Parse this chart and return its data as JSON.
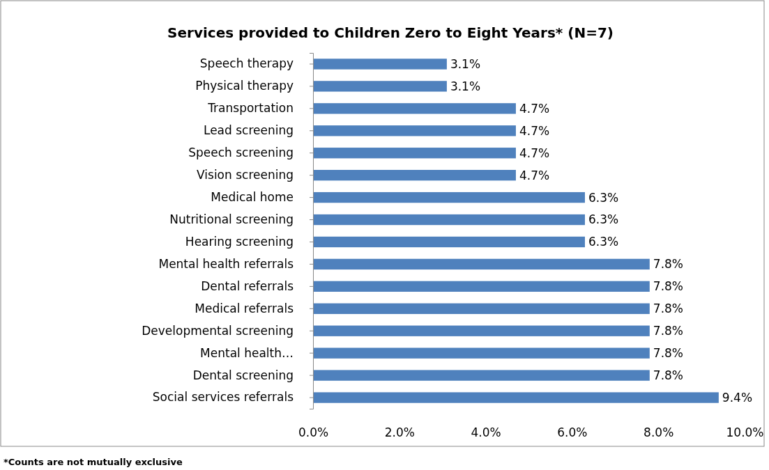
{
  "chart_data": {
    "type": "bar",
    "orientation": "horizontal",
    "title": "Services provided to Children Zero to Eight Years* (N=7)",
    "categories": [
      "Speech therapy",
      "Physical therapy",
      "Transportation",
      "Lead screening",
      "Speech screening",
      "Vision screening",
      "Medical home",
      "Nutritional screening",
      "Hearing screening",
      "Mental health referrals",
      "Dental referrals",
      "Medical referrals",
      "Developmental screening",
      "Mental health…",
      "Dental screening",
      "Social services referrals"
    ],
    "values": [
      3.1,
      3.1,
      4.7,
      4.7,
      4.7,
      4.7,
      6.3,
      6.3,
      6.3,
      7.8,
      7.8,
      7.8,
      7.8,
      7.8,
      7.8,
      9.4
    ],
    "value_labels": [
      "3.1%",
      "3.1%",
      "4.7%",
      "4.7%",
      "4.7%",
      "4.7%",
      "6.3%",
      "6.3%",
      "6.3%",
      "7.8%",
      "7.8%",
      "7.8%",
      "7.8%",
      "7.8%",
      "7.8%",
      "9.4%"
    ],
    "color": "#4f81bd",
    "xlim": [
      0,
      10
    ],
    "xticks": [
      {
        "value": 0,
        "label": "0.0%"
      },
      {
        "value": 2,
        "label": "2.0%"
      },
      {
        "value": 4,
        "label": "4.0%"
      },
      {
        "value": 6,
        "label": "6.0%"
      },
      {
        "value": 8,
        "label": "8.0%"
      },
      {
        "value": 10,
        "label": "10.0%"
      }
    ],
    "annotations": [
      "*Counts are not mutually exclusive"
    ]
  }
}
